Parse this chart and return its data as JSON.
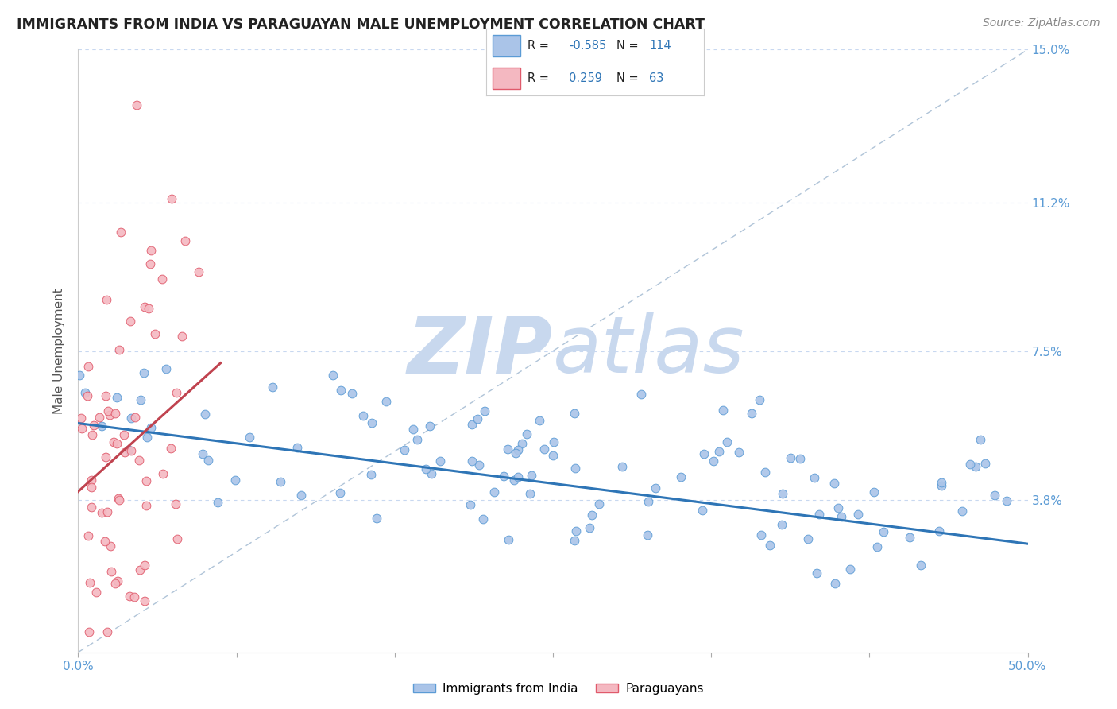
{
  "title": "IMMIGRANTS FROM INDIA VS PARAGUAYAN MALE UNEMPLOYMENT CORRELATION CHART",
  "source_text": "Source: ZipAtlas.com",
  "ylabel": "Male Unemployment",
  "xlim": [
    0.0,
    0.5
  ],
  "ylim": [
    0.0,
    0.15
  ],
  "yticks": [
    0.038,
    0.075,
    0.112,
    0.15
  ],
  "ytick_labels": [
    "3.8%",
    "7.5%",
    "11.2%",
    "15.0%"
  ],
  "xtick_positions": [
    0.0,
    0.0833,
    0.1667,
    0.25,
    0.3333,
    0.4167,
    0.5
  ],
  "xtick_labels_show": [
    "0.0%",
    "",
    "",
    "",
    "",
    "",
    "50.0%"
  ],
  "series": [
    {
      "name": "Immigrants from India",
      "R": -0.585,
      "N": 114,
      "color": "#aac4e8",
      "edge_color": "#5b9bd5",
      "trend_color": "#2e75b6",
      "trend_start_x": 0.0,
      "trend_start_y": 0.057,
      "trend_end_x": 0.5,
      "trend_end_y": 0.027
    },
    {
      "name": "Paraguayans",
      "R": 0.259,
      "N": 63,
      "color": "#f4b8c1",
      "edge_color": "#e05a6b",
      "trend_color": "#c0434f",
      "trend_start_x": 0.0,
      "trend_start_y": 0.04,
      "trend_end_x": 0.075,
      "trend_end_y": 0.072
    }
  ],
  "watermark_zip": "ZIP",
  "watermark_atlas": "atlas",
  "watermark_color": "#c8d8ee",
  "background_color": "#ffffff",
  "grid_color": "#c8d8f0",
  "title_color": "#222222",
  "tick_label_color": "#5b9bd5",
  "legend_R_color": "#2e75b6",
  "ref_line_color": "#b0c4d8",
  "title_fontsize": 12.5,
  "axis_label_fontsize": 11,
  "tick_fontsize": 11,
  "source_fontsize": 10
}
